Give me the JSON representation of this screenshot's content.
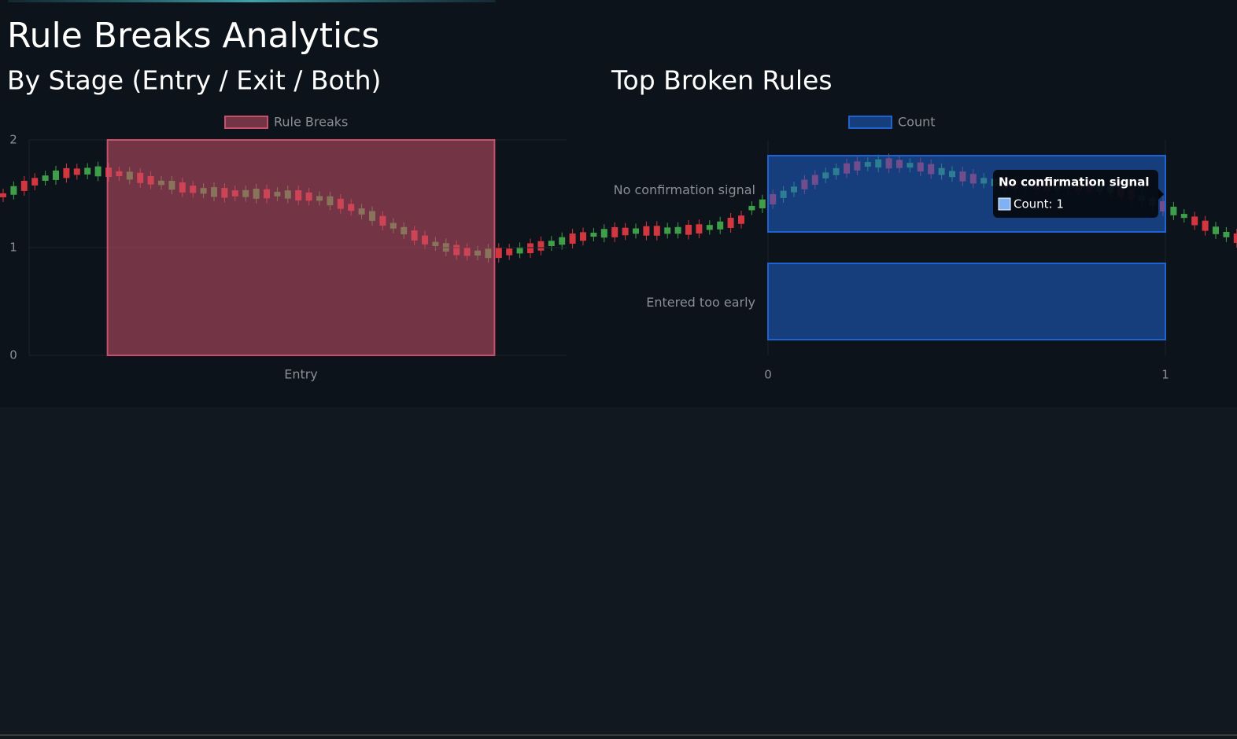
{
  "title": "Rule Breaks Analytics",
  "chart_data": [
    {
      "type": "bar",
      "title": "By Stage (Entry / Exit / Both)",
      "categories": [
        "Entry"
      ],
      "series": [
        {
          "name": "Rule Breaks",
          "color": "#c8506a",
          "values": [
            2
          ]
        }
      ],
      "ylim": [
        0,
        2
      ],
      "yticks": [
        0,
        1,
        2
      ],
      "grid": true
    },
    {
      "type": "hbar",
      "title": "Top Broken Rules",
      "categories": [
        "No confirmation signal",
        "Entered too early"
      ],
      "series": [
        {
          "name": "Count",
          "color": "#1f63d0",
          "values": [
            1,
            1
          ]
        }
      ],
      "xlim": [
        0,
        1
      ],
      "xticks": [
        0,
        1
      ],
      "grid": true,
      "tooltip": {
        "title": "No confirmation signal",
        "label": "Count: 1"
      }
    }
  ]
}
